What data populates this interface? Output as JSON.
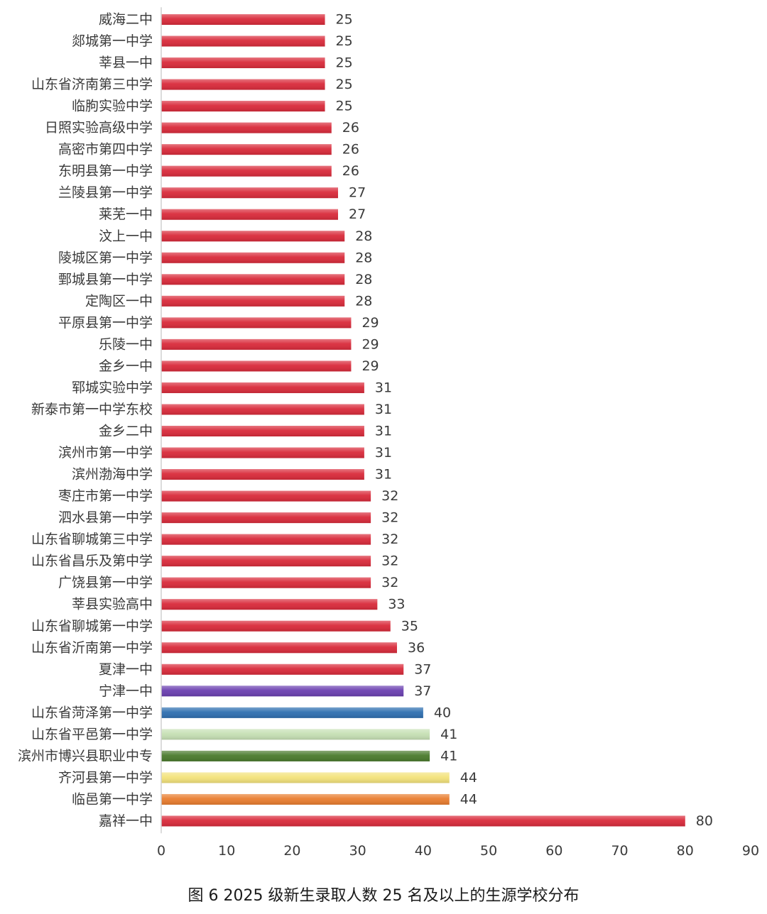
{
  "caption": "图 6 2025 级新生录取人数 25 名及以上的生源学校分布",
  "chart_data": {
    "type": "bar",
    "orientation": "horizontal",
    "title": "",
    "xlabel": "",
    "ylabel": "",
    "xlim": [
      0,
      90
    ],
    "xticks": [
      0,
      10,
      20,
      30,
      40,
      50,
      60,
      70,
      80,
      90
    ],
    "grid": false,
    "legend": "none",
    "default_color": "#d92a3a",
    "categories": [
      "威海二中",
      "郯城第一中学",
      "莘县一中",
      "山东省济南第三中学",
      "临朐实验中学",
      "日照实验高级中学",
      "高密市第四中学",
      "东明县第一中学",
      "兰陵县第一中学",
      "莱芜一中",
      "汶上一中",
      "陵城区第一中学",
      "鄄城县第一中学",
      "定陶区一中",
      "平原县第一中学",
      "乐陵一中",
      "金乡一中",
      "郓城实验中学",
      "新泰市第一中学东校",
      "金乡二中",
      "滨州市第一中学",
      "滨州渤海中学",
      "枣庄市第一中学",
      "泗水县第一中学",
      "山东省聊城第三中学",
      "山东省昌乐及第中学",
      "广饶县第一中学",
      "莘县实验高中",
      "山东省聊城第一中学",
      "山东省沂南第一中学",
      "夏津一中",
      "宁津一中",
      "山东省菏泽第一中学",
      "山东省平邑第一中学",
      "滨州市博兴县职业中专",
      "齐河县第一中学",
      "临邑第一中学",
      "嘉祥一中"
    ],
    "values": [
      25,
      25,
      25,
      25,
      25,
      26,
      26,
      26,
      27,
      27,
      28,
      28,
      28,
      28,
      29,
      29,
      29,
      31,
      31,
      31,
      31,
      31,
      32,
      32,
      32,
      32,
      32,
      33,
      35,
      36,
      37,
      37,
      40,
      41,
      41,
      44,
      44,
      80
    ],
    "colors": [
      "#d92a3a",
      "#d92a3a",
      "#d92a3a",
      "#d92a3a",
      "#d92a3a",
      "#d92a3a",
      "#d92a3a",
      "#d92a3a",
      "#d92a3a",
      "#d92a3a",
      "#d92a3a",
      "#d92a3a",
      "#d92a3a",
      "#d92a3a",
      "#d92a3a",
      "#d92a3a",
      "#d92a3a",
      "#d92a3a",
      "#d92a3a",
      "#d92a3a",
      "#d92a3a",
      "#d92a3a",
      "#d92a3a",
      "#d92a3a",
      "#d92a3a",
      "#d92a3a",
      "#d92a3a",
      "#d92a3a",
      "#d92a3a",
      "#d92a3a",
      "#d92a3a",
      "#6a3fb0",
      "#2e6fb0",
      "#c6e0b4",
      "#4a7a2c",
      "#f3e27a",
      "#e97d2f",
      "#d92a3a"
    ]
  }
}
